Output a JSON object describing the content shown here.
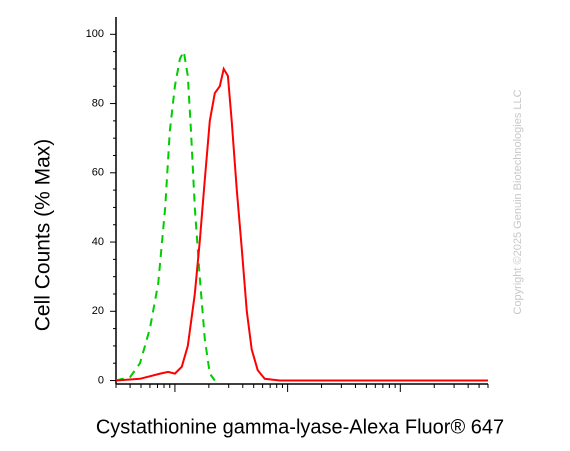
{
  "chart_data": {
    "type": "line",
    "ylabel": "Cell Counts (% Max)",
    "xlabel": "Cystathionine gamma-lyase-Alexa Fluor® 647",
    "watermark": "Copyright ©2025 Genuin Biotechnologies LLC",
    "xscale": "log",
    "xlim": [
      3,
      6000
    ],
    "xticks": [
      10,
      100,
      1000
    ],
    "ylim": [
      -1,
      105
    ],
    "yticks": [
      0,
      20,
      40,
      60,
      80,
      100
    ],
    "grid": false,
    "series": [
      {
        "color": "#00cc00",
        "dash": true,
        "x": [
          3.0,
          4.0,
          4.9,
          6.0,
          7.1,
          8.2,
          9.0,
          10,
          11.1,
          12.0,
          13.0,
          13.9,
          15.0,
          16.6,
          18.4,
          20.4,
          22.6
        ],
        "values": [
          0,
          1,
          5,
          15,
          28,
          50,
          72,
          85,
          93,
          95,
          88,
          72,
          50,
          30,
          12,
          2,
          0
        ]
      },
      {
        "color": "#ff0000",
        "dash": false,
        "x": [
          3.0,
          4.9,
          7.4,
          8.7,
          10,
          11.5,
          13.0,
          15.0,
          16.6,
          18.4,
          20.4,
          22.6,
          25.0,
          27.1,
          29.5,
          31.9,
          35.4,
          39.2,
          43.4,
          48.0,
          54.3,
          62.6,
          85,
          6000
        ],
        "values": [
          0,
          0.5,
          2,
          2.5,
          2,
          4,
          10,
          25,
          40,
          58,
          75,
          83,
          85,
          90,
          88,
          75,
          55,
          38,
          20,
          9,
          3,
          0.5,
          0,
          0
        ]
      }
    ]
  }
}
